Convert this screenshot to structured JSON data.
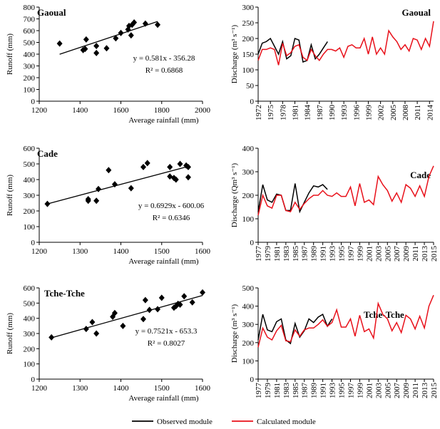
{
  "chart_data": [
    {
      "type": "scatter",
      "title": "Gaoual",
      "xlabel": "Average rainfall (mm)",
      "ylabel": "Runoff (mm)",
      "x": [
        1300,
        1415,
        1425,
        1430,
        1480,
        1480,
        1530,
        1575,
        1600,
        1635,
        1640,
        1650,
        1655,
        1665,
        1720,
        1780
      ],
      "values": [
        490,
        435,
        445,
        525,
        470,
        410,
        450,
        535,
        580,
        610,
        640,
        560,
        650,
        670,
        660,
        650
      ],
      "color": "#000000",
      "trendline": {
        "x": [
          1300,
          1780
        ],
        "values": [
          399,
          678
        ]
      },
      "annotations": [
        "y = 0.581x - 356.28",
        "R² = 0.6868"
      ],
      "xlim": [
        1200,
        2000
      ],
      "xticks": [
        1200,
        1400,
        1600,
        1800,
        2000
      ],
      "ylim": [
        0,
        800
      ],
      "yticks": [
        0,
        100,
        200,
        300,
        400,
        500,
        600,
        700,
        800
      ]
    },
    {
      "type": "line",
      "title": "Gaoual",
      "ylabel": "Discharge (m³ s⁻¹)",
      "x": [
        1972,
        1973,
        1974,
        1975,
        1976,
        1977,
        1978,
        1979,
        1980,
        1981,
        1982,
        1983,
        1984,
        1985,
        1986,
        1987,
        1988,
        1989,
        1990,
        1991,
        1992,
        1993,
        1994,
        1995,
        1996,
        1997,
        1998,
        1999,
        2000,
        2001,
        2002,
        2003,
        2004,
        2005,
        2006,
        2007,
        2008,
        2009,
        2010,
        2011,
        2012,
        2013,
        2014,
        2015
      ],
      "series": [
        {
          "color": "#000000",
          "values": [
            150,
            185,
            190,
            200,
            175,
            150,
            190,
            135,
            145,
            200,
            195,
            125,
            130,
            180,
            135,
            150,
            170,
            190,
            null,
            null,
            null,
            null,
            null,
            null,
            null,
            null,
            null,
            null,
            null,
            null,
            null,
            null,
            null,
            null,
            null,
            null,
            null,
            null,
            null,
            null,
            null,
            null,
            null,
            null
          ]
        },
        {
          "color": "#e8101a",
          "values": [
            130,
            165,
            165,
            170,
            165,
            115,
            185,
            145,
            155,
            175,
            180,
            140,
            130,
            165,
            145,
            130,
            150,
            165,
            165,
            160,
            170,
            140,
            175,
            180,
            170,
            170,
            200,
            150,
            205,
            150,
            170,
            150,
            225,
            205,
            190,
            165,
            180,
            160,
            200,
            195,
            165,
            200,
            175,
            255
          ]
        }
      ],
      "xlim": [
        1972,
        2015
      ],
      "xticks": [
        1972,
        1975,
        1978,
        1981,
        1984,
        1987,
        1990,
        1993,
        1996,
        1999,
        2002,
        2005,
        2008,
        2011,
        2014
      ],
      "ylim": [
        0,
        300
      ],
      "yticks": [
        0,
        50,
        100,
        150,
        200,
        250,
        300
      ]
    },
    {
      "type": "scatter",
      "title": "Cade",
      "xlabel": "Average rainfall (mm)",
      "ylabel": "Runoff (mm)",
      "x": [
        1220,
        1320,
        1320,
        1340,
        1345,
        1370,
        1385,
        1425,
        1455,
        1465,
        1520,
        1520,
        1530,
        1535,
        1545,
        1560,
        1565,
        1565
      ],
      "values": [
        245,
        275,
        265,
        265,
        340,
        460,
        370,
        345,
        480,
        505,
        480,
        420,
        410,
        400,
        500,
        490,
        415,
        480
      ],
      "color": "#000000",
      "trendline": {
        "x": [
          1220,
          1565
        ],
        "values": [
          245,
          484
        ]
      },
      "annotations": [
        "y = 0.6929x - 600.06",
        "R² = 0.6346"
      ],
      "xlim": [
        1200,
        1600
      ],
      "xticks": [
        1200,
        1300,
        1400,
        1500,
        1600
      ],
      "ylim": [
        0,
        600
      ],
      "yticks": [
        0,
        100,
        200,
        300,
        400,
        500,
        600
      ]
    },
    {
      "type": "line",
      "title": "Cade",
      "ylabel": "Discharge (Qm³ s⁻¹)",
      "x": [
        1977,
        1978,
        1979,
        1980,
        1981,
        1982,
        1983,
        1984,
        1985,
        1986,
        1987,
        1988,
        1989,
        1990,
        1991,
        1992,
        1993,
        1994,
        1995,
        1996,
        1997,
        1998,
        1999,
        2000,
        2001,
        2002,
        2003,
        2004,
        2005,
        2006,
        2007,
        2008,
        2009,
        2010,
        2011,
        2012,
        2013,
        2014,
        2015
      ],
      "series": [
        {
          "color": "#000000",
          "values": [
            130,
            245,
            180,
            170,
            205,
            200,
            135,
            135,
            250,
            130,
            170,
            210,
            240,
            235,
            245,
            225,
            null,
            null,
            null,
            null,
            null,
            null,
            null,
            null,
            null,
            null,
            null,
            null,
            null,
            null,
            null,
            null,
            null,
            null,
            null,
            null,
            null,
            null,
            null
          ]
        },
        {
          "color": "#e8101a",
          "values": [
            115,
            200,
            155,
            145,
            200,
            200,
            135,
            130,
            170,
            140,
            165,
            185,
            200,
            200,
            220,
            200,
            195,
            210,
            195,
            195,
            235,
            155,
            250,
            170,
            180,
            160,
            280,
            245,
            220,
            175,
            210,
            170,
            245,
            230,
            195,
            240,
            195,
            280,
            325
          ]
        }
      ],
      "xlim": [
        1977,
        2015
      ],
      "xticks": [
        1977,
        1979,
        1981,
        1983,
        1985,
        1987,
        1989,
        1991,
        1993,
        1995,
        1997,
        1999,
        2001,
        2003,
        2005,
        2007,
        2009,
        2011,
        2013,
        2015
      ],
      "ylim": [
        0,
        400
      ],
      "yticks": [
        0,
        100,
        200,
        300,
        400
      ]
    },
    {
      "type": "scatter",
      "title": "Tche-Tche",
      "xlabel": "Average rainfall (mm)",
      "ylabel": "Runoff (mm)",
      "x": [
        1230,
        1315,
        1330,
        1340,
        1380,
        1385,
        1405,
        1455,
        1460,
        1470,
        1490,
        1500,
        1530,
        1535,
        1540,
        1545,
        1555,
        1575,
        1600
      ],
      "values": [
        275,
        330,
        375,
        300,
        410,
        435,
        350,
        395,
        520,
        455,
        460,
        535,
        470,
        480,
        495,
        490,
        545,
        505,
        570
      ],
      "color": "#000000",
      "trendline": {
        "x": [
          1230,
          1600
        ],
        "values": [
          272,
          550
        ]
      },
      "annotations": [
        "y = 0.7521x - 653.3",
        "R² = 0.8027"
      ],
      "xlim": [
        1200,
        1600
      ],
      "xticks": [
        1200,
        1300,
        1400,
        1500,
        1600
      ],
      "ylim": [
        0,
        600
      ],
      "yticks": [
        0,
        100,
        200,
        300,
        400,
        500,
        600
      ]
    },
    {
      "type": "line",
      "title": "Tche-Tche",
      "ylabel": "Discharge (m³ s⁻¹)",
      "x": [
        1977,
        1978,
        1979,
        1980,
        1981,
        1982,
        1983,
        1984,
        1985,
        1986,
        1987,
        1988,
        1989,
        1990,
        1991,
        1992,
        1993,
        1994,
        1995,
        1996,
        1997,
        1998,
        1999,
        2000,
        2001,
        2002,
        2003,
        2004,
        2005,
        2006,
        2007,
        2008,
        2009,
        2010,
        2011,
        2012,
        2013,
        2014,
        2015
      ],
      "series": [
        {
          "color": "#000000",
          "values": [
            215,
            355,
            270,
            260,
            315,
            330,
            215,
            195,
            305,
            230,
            265,
            330,
            310,
            340,
            355,
            290,
            330,
            null,
            null,
            null,
            null,
            null,
            null,
            null,
            null,
            null,
            null,
            null,
            null,
            null,
            null,
            null,
            null,
            null,
            null,
            null,
            null,
            null,
            null
          ]
        },
        {
          "color": "#e8101a",
          "values": [
            175,
            280,
            230,
            215,
            265,
            295,
            210,
            205,
            270,
            235,
            270,
            280,
            280,
            300,
            325,
            290,
            310,
            380,
            285,
            285,
            330,
            235,
            350,
            260,
            275,
            225,
            415,
            355,
            330,
            265,
            310,
            255,
            350,
            330,
            275,
            345,
            280,
            400,
            460
          ]
        }
      ],
      "xlim": [
        1977,
        2015
      ],
      "xticks": [
        1977,
        1979,
        1981,
        1983,
        1985,
        1987,
        1989,
        1991,
        1993,
        1995,
        1997,
        1999,
        2001,
        2003,
        2005,
        2007,
        2009,
        2011,
        2013,
        2015
      ],
      "ylim": [
        0,
        500
      ],
      "yticks": [
        0,
        100,
        200,
        300,
        400,
        500
      ]
    }
  ],
  "legend": [
    "Observed module",
    "Calculated module"
  ]
}
